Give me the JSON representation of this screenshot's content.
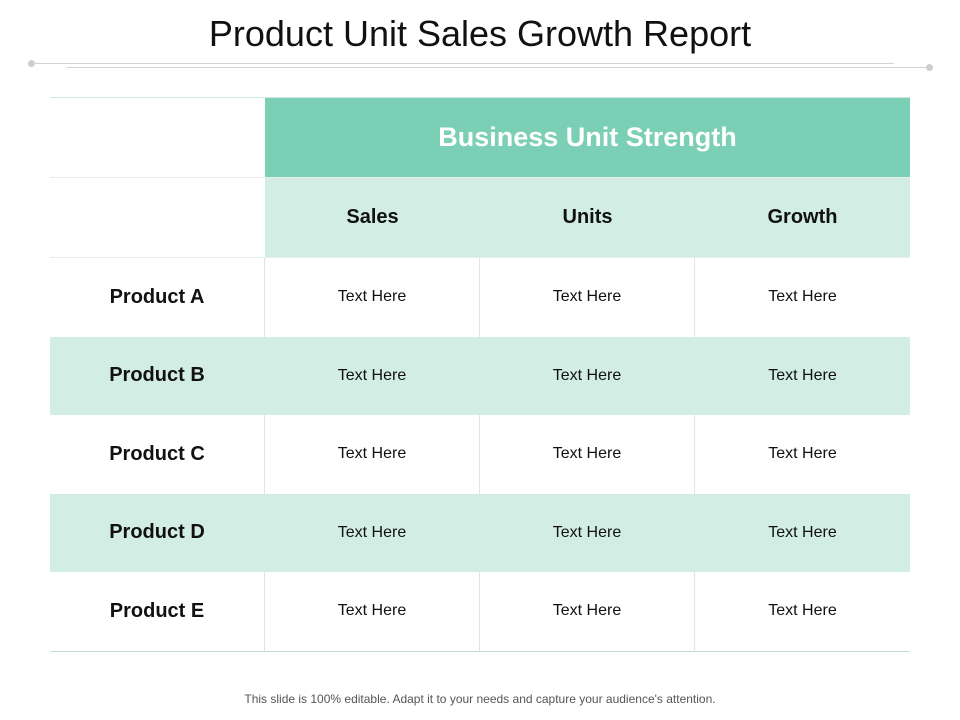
{
  "title": "Product Unit Sales Growth Report",
  "table": {
    "group_header": "Business Unit Strength",
    "columns": [
      "Sales",
      "Units",
      "Growth"
    ],
    "rows": [
      {
        "label": "Product A",
        "cells": [
          "Text Here",
          "Text Here",
          "Text Here"
        ]
      },
      {
        "label": "Product B",
        "cells": [
          "Text Here",
          "Text Here",
          "Text Here"
        ]
      },
      {
        "label": "Product C",
        "cells": [
          "Text Here",
          "Text Here",
          "Text Here"
        ]
      },
      {
        "label": "Product D",
        "cells": [
          "Text Here",
          "Text Here",
          "Text Here"
        ]
      },
      {
        "label": "Product E",
        "cells": [
          "Text Here",
          "Text Here",
          "Text Here"
        ]
      }
    ]
  },
  "footer": "This slide is 100% editable. Adapt it to your needs and capture your audience's attention.",
  "colors": {
    "header_green": "#7bcfb5",
    "light_green": "#d1ede4",
    "text": "#111111"
  }
}
